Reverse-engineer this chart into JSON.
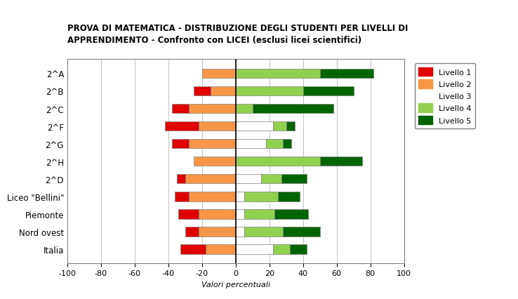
{
  "title": "PROVA DI MATEMATICA - DISTRIBUZIONE DEGLI STUDENTI PER LIVELLI DI\nAPPRENDIMENTO - Confronto con LICEI (esclusi licei scientifici)",
  "xlabel": "Valori percentuali",
  "xlim": [
    -100,
    100
  ],
  "xticks": [
    -100,
    -80,
    -60,
    -40,
    -20,
    0,
    20,
    40,
    60,
    80,
    100
  ],
  "colors": {
    "L1": "#e00000",
    "L2": "#f79646",
    "L3": "#ffffff",
    "L4": "#92d050",
    "L5": "#006400"
  },
  "legend_labels": [
    "Livello 1",
    "Livello 2",
    "Livello 3",
    "Livello 4",
    "Livello 5"
  ],
  "rows": [
    [
      "2^A",
      0,
      -20,
      0,
      50,
      32
    ],
    [
      "2^B",
      -10,
      -15,
      0,
      40,
      30
    ],
    [
      "2^C",
      -10,
      -28,
      0,
      10,
      48
    ],
    [
      "2^F",
      -20,
      -22,
      22,
      8,
      5
    ],
    [
      "2^G",
      -10,
      -28,
      18,
      10,
      5
    ],
    [
      "2^H",
      0,
      -25,
      0,
      50,
      25
    ],
    [
      "2^D",
      -5,
      -30,
      15,
      12,
      15
    ],
    [
      "Liceo \"Bellini\"",
      -8,
      -28,
      5,
      20,
      13
    ],
    [
      "Piemonte",
      -12,
      -22,
      5,
      18,
      20
    ],
    [
      "Nord ovest",
      -8,
      -22,
      5,
      23,
      22
    ],
    [
      "Italia",
      -15,
      -18,
      22,
      10,
      10
    ]
  ],
  "background_color": "#ffffff",
  "grid_color": "#aaaaaa",
  "bar_height": 0.55
}
